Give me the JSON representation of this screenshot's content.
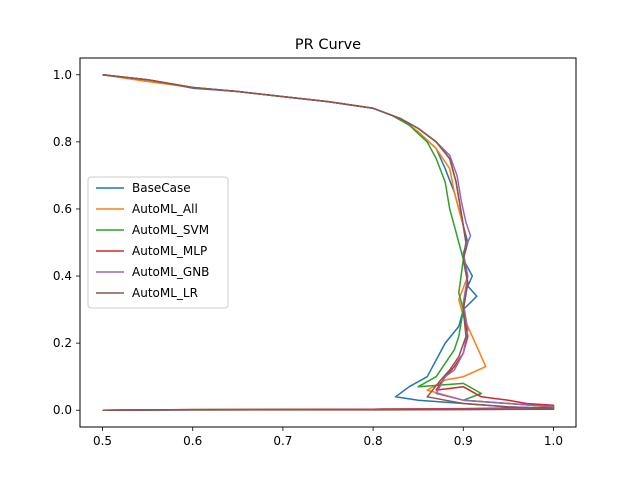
{
  "chart_data": {
    "type": "line",
    "title": "PR Curve",
    "xlabel": "",
    "ylabel": "",
    "xlim": [
      0.475,
      1.025
    ],
    "ylim": [
      -0.05,
      1.05
    ],
    "xticks": [
      0.5,
      0.6,
      0.7,
      0.8,
      0.9,
      1.0
    ],
    "xtick_labels": [
      "0.5",
      "0.6",
      "0.7",
      "0.8",
      "0.9",
      "1.0"
    ],
    "yticks": [
      0.0,
      0.2,
      0.4,
      0.6,
      0.8,
      1.0
    ],
    "ytick_labels": [
      "0.0",
      "0.2",
      "0.4",
      "0.6",
      "0.8",
      "1.0"
    ],
    "grid": false,
    "legend": {
      "position": "center-left"
    },
    "series": [
      {
        "name": "BaseCase",
        "color": "#1f77b4",
        "x": [
          0.5,
          0.55,
          0.6,
          0.65,
          0.7,
          0.75,
          0.8,
          0.83,
          0.85,
          0.87,
          0.88,
          0.89,
          0.895,
          0.9,
          0.905,
          0.9,
          0.91,
          0.905,
          0.915,
          0.9,
          0.895,
          0.88,
          0.86,
          0.84,
          0.825,
          0.85,
          0.9,
          0.95,
          1.0,
          1.0,
          0.9,
          0.8,
          0.6,
          0.5
        ],
        "y": [
          1.0,
          0.985,
          0.96,
          0.95,
          0.935,
          0.92,
          0.9,
          0.87,
          0.83,
          0.78,
          0.72,
          0.65,
          0.6,
          0.55,
          0.5,
          0.45,
          0.4,
          0.37,
          0.34,
          0.3,
          0.25,
          0.2,
          0.1,
          0.07,
          0.04,
          0.03,
          0.02,
          0.01,
          0.006,
          0.004,
          0.003,
          0.002,
          0.001,
          0.0
        ]
      },
      {
        "name": "AutoML_All",
        "color": "#ff7f0e",
        "x": [
          0.5,
          0.55,
          0.6,
          0.65,
          0.7,
          0.75,
          0.8,
          0.83,
          0.85,
          0.87,
          0.885,
          0.89,
          0.895,
          0.9,
          0.903,
          0.9,
          0.905,
          0.895,
          0.9,
          0.91,
          0.92,
          0.925,
          0.9,
          0.88,
          0.86,
          0.9,
          0.95,
          1.0,
          1.0,
          0.9,
          0.8,
          0.6,
          0.5
        ],
        "y": [
          1.0,
          0.98,
          0.962,
          0.95,
          0.935,
          0.92,
          0.9,
          0.87,
          0.83,
          0.78,
          0.72,
          0.65,
          0.6,
          0.55,
          0.5,
          0.45,
          0.4,
          0.33,
          0.28,
          0.22,
          0.16,
          0.13,
          0.1,
          0.09,
          0.06,
          0.03,
          0.02,
          0.01,
          0.005,
          0.004,
          0.003,
          0.002,
          0.0
        ]
      },
      {
        "name": "AutoML_SVM",
        "color": "#2ca02c",
        "x": [
          0.5,
          0.55,
          0.6,
          0.65,
          0.7,
          0.75,
          0.8,
          0.82,
          0.84,
          0.86,
          0.87,
          0.88,
          0.885,
          0.89,
          0.895,
          0.9,
          0.895,
          0.9,
          0.895,
          0.89,
          0.88,
          0.87,
          0.85,
          0.9,
          0.92,
          0.9,
          0.95,
          1.0,
          1.0,
          0.9,
          0.8,
          0.6,
          0.5
        ],
        "y": [
          1.0,
          0.985,
          0.962,
          0.95,
          0.935,
          0.92,
          0.9,
          0.88,
          0.85,
          0.8,
          0.75,
          0.68,
          0.6,
          0.55,
          0.5,
          0.45,
          0.35,
          0.3,
          0.22,
          0.18,
          0.14,
          0.1,
          0.07,
          0.08,
          0.05,
          0.03,
          0.02,
          0.01,
          0.005,
          0.004,
          0.003,
          0.002,
          0.0
        ]
      },
      {
        "name": "AutoML_MLP",
        "color": "#d62728",
        "x": [
          0.5,
          0.55,
          0.6,
          0.65,
          0.7,
          0.75,
          0.8,
          0.83,
          0.85,
          0.87,
          0.885,
          0.892,
          0.897,
          0.9,
          0.903,
          0.9,
          0.905,
          0.9,
          0.905,
          0.9,
          0.89,
          0.88,
          0.87,
          0.9,
          0.92,
          0.95,
          0.97,
          1.0,
          1.0,
          0.9,
          0.8,
          0.6,
          0.5
        ],
        "y": [
          1.0,
          0.985,
          0.962,
          0.95,
          0.935,
          0.92,
          0.9,
          0.87,
          0.84,
          0.8,
          0.75,
          0.68,
          0.6,
          0.55,
          0.5,
          0.45,
          0.38,
          0.3,
          0.22,
          0.17,
          0.13,
          0.1,
          0.06,
          0.07,
          0.04,
          0.03,
          0.02,
          0.015,
          0.008,
          0.005,
          0.003,
          0.002,
          0.0
        ]
      },
      {
        "name": "AutoML_GNB",
        "color": "#9467bd",
        "x": [
          0.5,
          0.55,
          0.6,
          0.65,
          0.7,
          0.75,
          0.8,
          0.83,
          0.85,
          0.87,
          0.885,
          0.893,
          0.898,
          0.903,
          0.908,
          0.9,
          0.905,
          0.9,
          0.905,
          0.9,
          0.89,
          0.88,
          0.87,
          0.9,
          0.95,
          1.0,
          1.0,
          0.9,
          0.8,
          0.6,
          0.5
        ],
        "y": [
          1.0,
          0.985,
          0.962,
          0.95,
          0.935,
          0.92,
          0.9,
          0.87,
          0.84,
          0.8,
          0.76,
          0.7,
          0.62,
          0.56,
          0.52,
          0.47,
          0.4,
          0.32,
          0.24,
          0.17,
          0.12,
          0.1,
          0.05,
          0.03,
          0.02,
          0.01,
          0.005,
          0.003,
          0.002,
          0.001,
          0.0
        ]
      },
      {
        "name": "AutoML_LR",
        "color": "#8c564b",
        "x": [
          0.5,
          0.55,
          0.6,
          0.65,
          0.7,
          0.75,
          0.8,
          0.83,
          0.85,
          0.87,
          0.885,
          0.892,
          0.897,
          0.9,
          0.903,
          0.9,
          0.905,
          0.9,
          0.903,
          0.895,
          0.885,
          0.875,
          0.86,
          0.88,
          0.9,
          0.95,
          1.0,
          1.0,
          0.9,
          0.8,
          0.6,
          0.5
        ],
        "y": [
          1.0,
          0.985,
          0.962,
          0.95,
          0.935,
          0.92,
          0.9,
          0.87,
          0.84,
          0.8,
          0.75,
          0.68,
          0.6,
          0.55,
          0.5,
          0.45,
          0.38,
          0.3,
          0.22,
          0.16,
          0.12,
          0.09,
          0.04,
          0.03,
          0.02,
          0.01,
          0.005,
          0.003,
          0.002,
          0.001,
          0.001,
          0.0
        ]
      }
    ]
  }
}
